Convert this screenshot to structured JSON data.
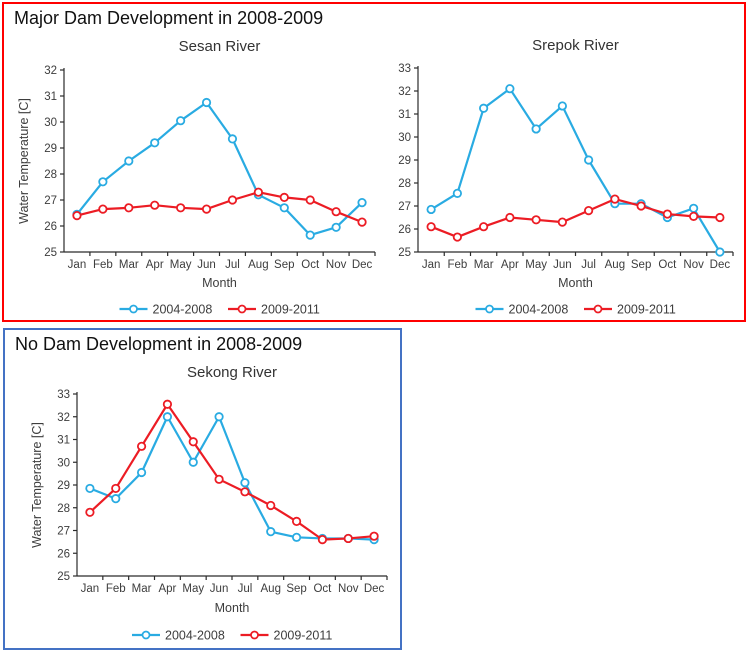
{
  "page": {
    "background": "#ffffff"
  },
  "panels": [
    {
      "id": "major-dam",
      "title": "Major Dam Development in 2008-2009",
      "border_color": "#FF0000",
      "charts": [
        "sesan",
        "srepok"
      ]
    },
    {
      "id": "no-dam",
      "title": "No Dam Development in 2008-2009",
      "border_color": "#4472C4",
      "charts": [
        "sekong"
      ]
    }
  ],
  "chart_data": [
    {
      "id": "sesan",
      "type": "line",
      "title": "Sesan River",
      "xlabel": "Month",
      "ylabel": "Water Temperature [C]",
      "ylim": [
        25,
        32
      ],
      "ytick_step": 1,
      "grid": false,
      "legend_position": "bottom",
      "categories": [
        "Jan",
        "Feb",
        "Mar",
        "Apr",
        "May",
        "Jun",
        "Jul",
        "Aug",
        "Sep",
        "Oct",
        "Nov",
        "Dec"
      ],
      "series": [
        {
          "name": "2004-2008",
          "color": "#29ABE2",
          "values": [
            26.45,
            27.7,
            28.5,
            29.2,
            30.05,
            30.75,
            29.35,
            27.2,
            26.7,
            25.65,
            25.95,
            26.9
          ]
        },
        {
          "name": "2009-2011",
          "color": "#EC1C24",
          "values": [
            26.4,
            26.65,
            26.7,
            26.8,
            26.7,
            26.65,
            27.0,
            27.3,
            27.1,
            27.0,
            26.55,
            26.15
          ]
        }
      ]
    },
    {
      "id": "srepok",
      "type": "line",
      "title": "Srepok River",
      "xlabel": "Month",
      "ylabel": "Water Temperature [C]",
      "ylim": [
        25,
        33
      ],
      "ytick_step": 1,
      "grid": false,
      "legend_position": "bottom",
      "categories": [
        "Jan",
        "Feb",
        "Mar",
        "Apr",
        "May",
        "Jun",
        "Jul",
        "Aug",
        "Sep",
        "Oct",
        "Nov",
        "Dec"
      ],
      "series": [
        {
          "name": "2004-2008",
          "color": "#29ABE2",
          "values": [
            26.85,
            27.55,
            31.25,
            32.1,
            30.35,
            31.35,
            29.0,
            27.1,
            27.1,
            26.5,
            26.9,
            25.0
          ]
        },
        {
          "name": "2009-2011",
          "color": "#EC1C24",
          "values": [
            26.1,
            25.65,
            26.1,
            26.5,
            26.4,
            26.3,
            26.8,
            27.3,
            27.0,
            26.65,
            26.55,
            26.5
          ]
        }
      ]
    },
    {
      "id": "sekong",
      "type": "line",
      "title": "Sekong River",
      "xlabel": "Month",
      "ylabel": "Water Temperature [C]",
      "ylim": [
        25,
        33
      ],
      "ytick_step": 1,
      "grid": false,
      "legend_position": "bottom",
      "categories": [
        "Jan",
        "Feb",
        "Mar",
        "Apr",
        "May",
        "Jun",
        "Jul",
        "Aug",
        "Sep",
        "Oct",
        "Nov",
        "Dec"
      ],
      "series": [
        {
          "name": "2004-2008",
          "color": "#29ABE2",
          "values": [
            28.85,
            28.4,
            29.55,
            32.0,
            30.0,
            32.0,
            29.1,
            26.95,
            26.7,
            26.65,
            26.65,
            26.6
          ]
        },
        {
          "name": "2009-2011",
          "color": "#EC1C24",
          "values": [
            27.8,
            28.85,
            30.7,
            32.55,
            30.9,
            29.25,
            28.7,
            28.1,
            27.4,
            26.6,
            26.65,
            26.75
          ]
        }
      ]
    }
  ]
}
